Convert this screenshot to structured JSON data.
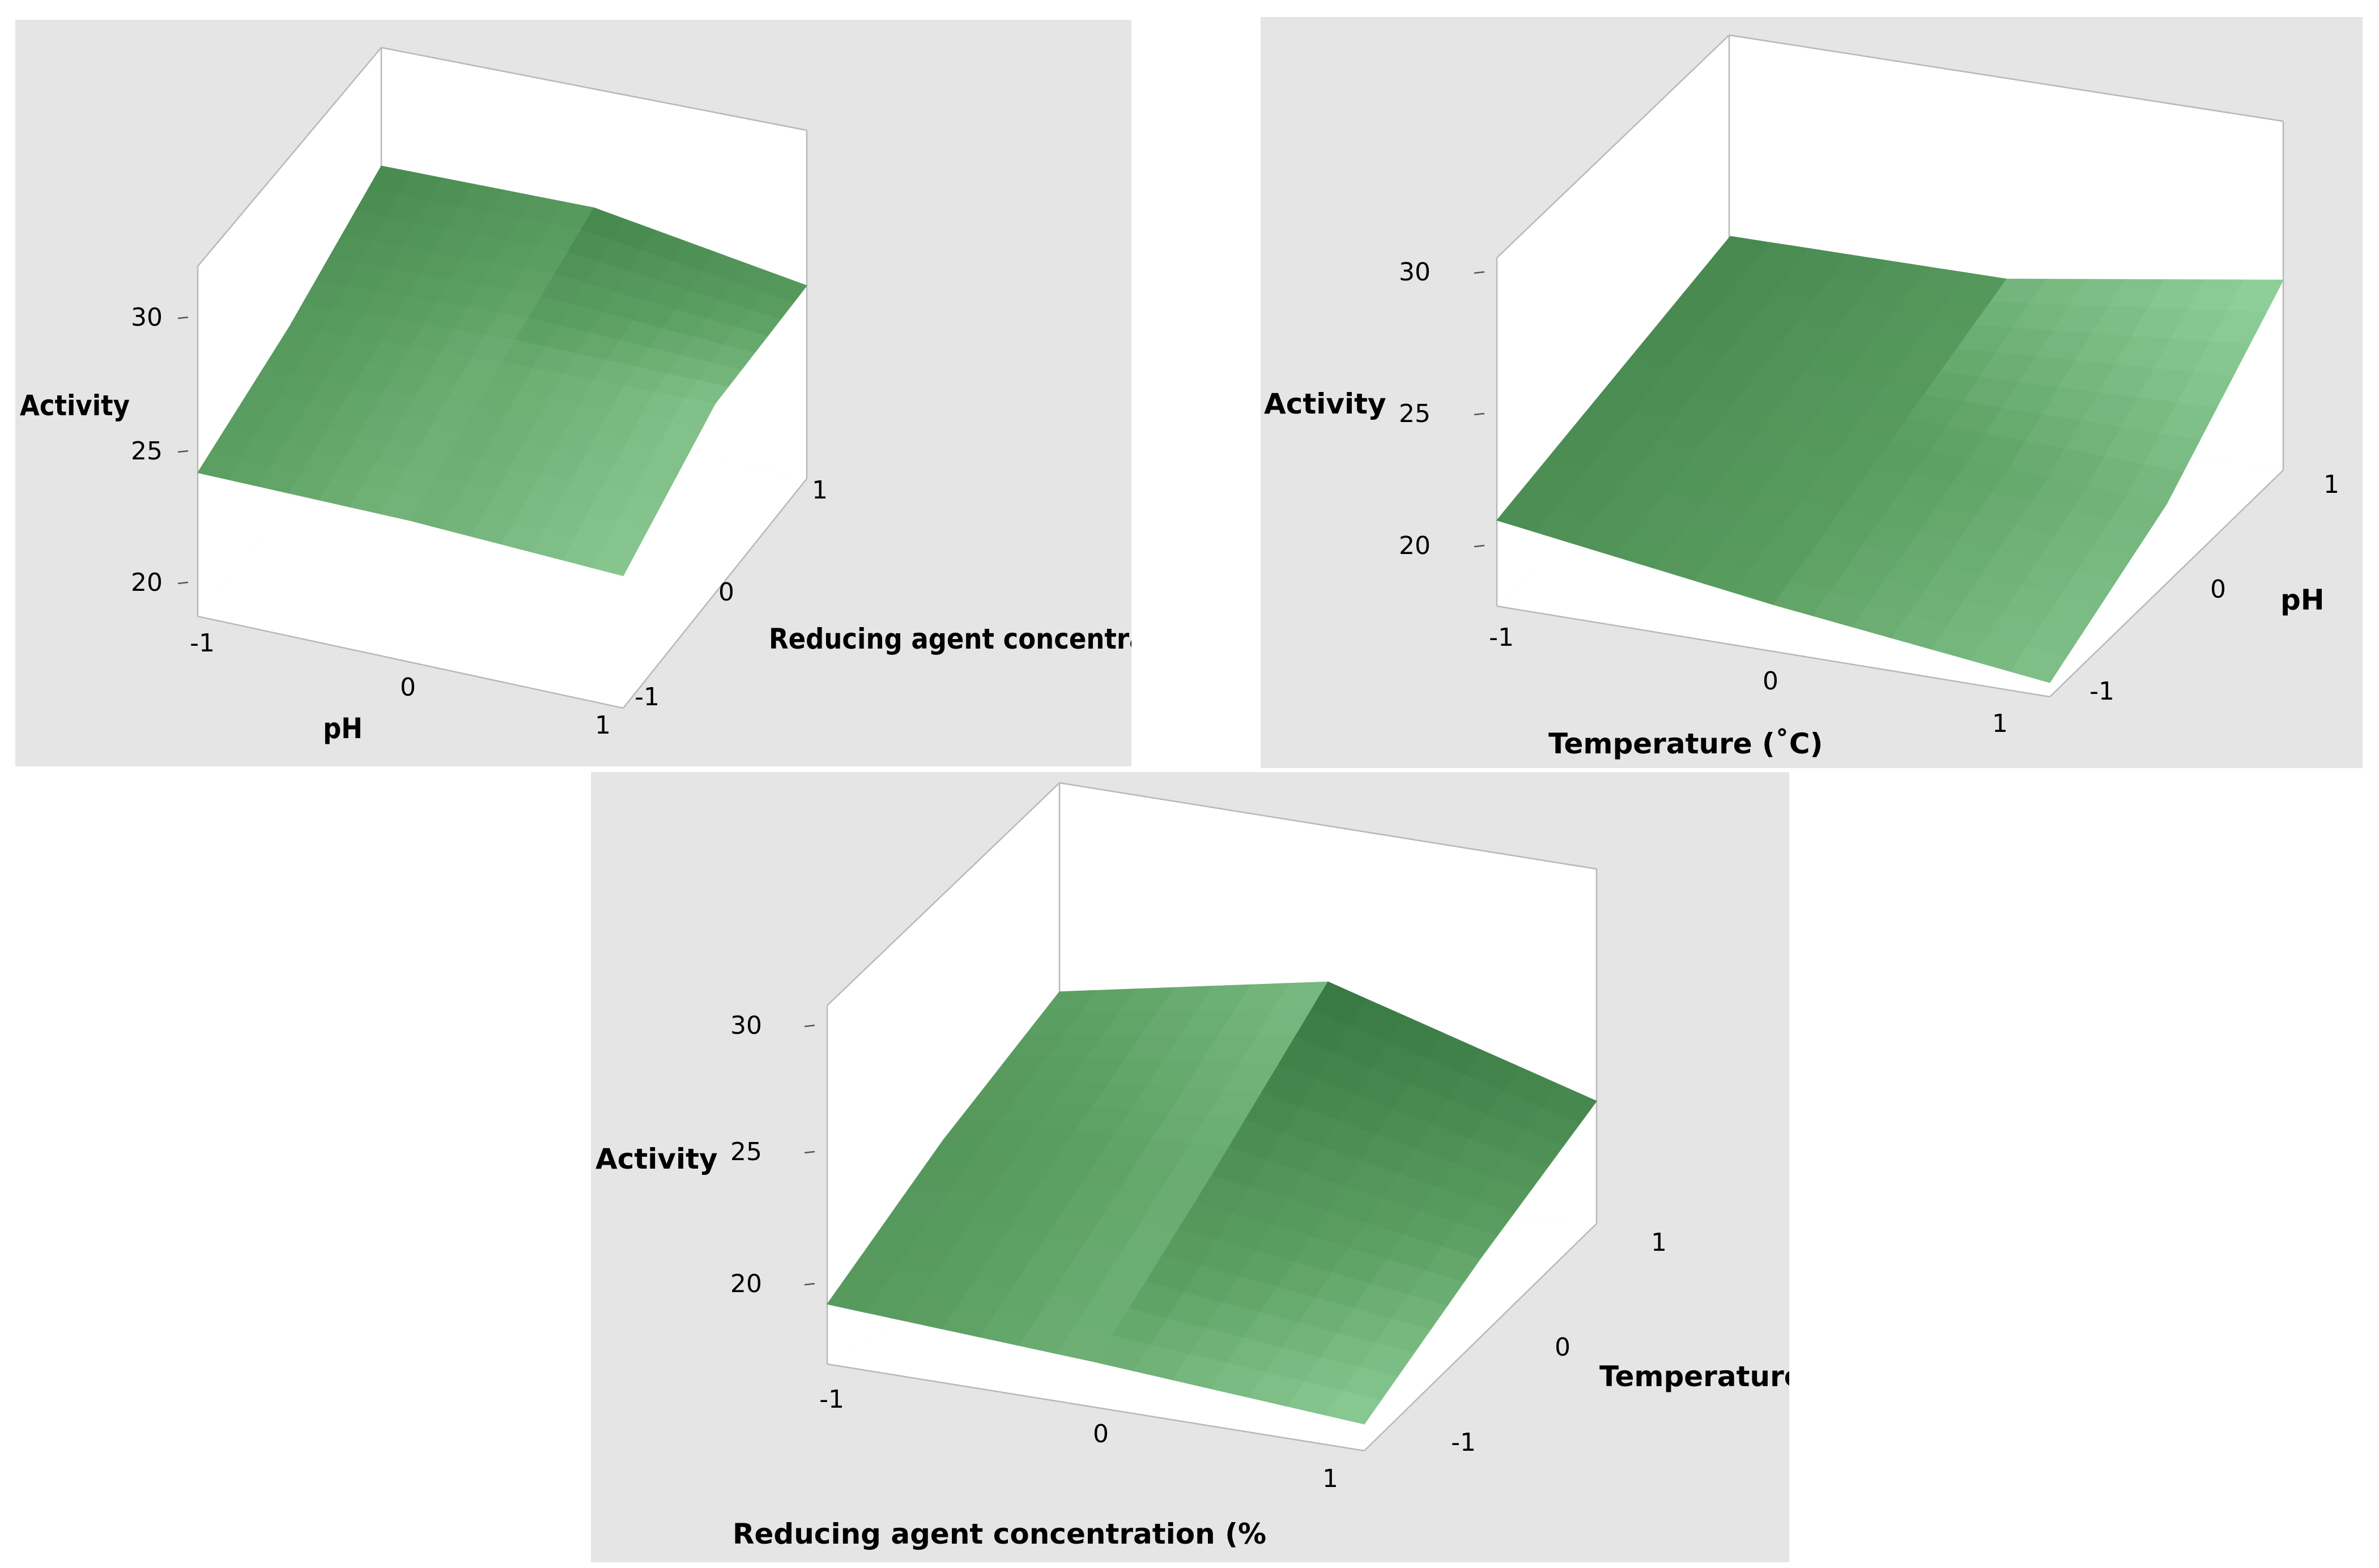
{
  "chart_data": [
    {
      "type": "surface",
      "zlabel": "Activity",
      "xlabel": "pH",
      "ylabel": "Reducing agent concentration",
      "x_ticks": [
        "-1",
        "0",
        "1"
      ],
      "y_ticks": [
        "-1",
        "0",
        "1"
      ],
      "z_ticks": [
        "20",
        "25",
        "30"
      ],
      "x": [
        -1,
        0,
        1
      ],
      "y": [
        -1,
        0,
        1
      ],
      "z": [
        [
          17.9,
          21.0,
          25.5
        ],
        [
          17.7,
          22.0,
          25.9
        ],
        [
          16.8,
          22.4,
          22.8
        ]
      ],
      "colors": {
        "dark": "#2f6e3a",
        "mid": "#5c9f62",
        "light": "#a9e3b2"
      }
    },
    {
      "type": "surface",
      "zlabel": "Activity",
      "xlabel": "Temperature (˚C)",
      "ylabel": "pH",
      "x_ticks": [
        "-1",
        "0",
        "1"
      ],
      "y_ticks": [
        "-1",
        "0",
        "1"
      ],
      "z_ticks": [
        "20",
        "25",
        "30"
      ],
      "x": [
        -1,
        0,
        1
      ],
      "y": [
        -1,
        0,
        1
      ],
      "z": [
        [
          20.2,
          22.4,
          24.6
        ],
        [
          17.2,
          21.0,
          24.8
        ],
        [
          14.7,
          19.7,
          28.2
        ]
      ],
      "colors": {
        "dark": "#2f6e3a",
        "mid": "#5c9f62",
        "light": "#b6f5c4"
      }
    },
    {
      "type": "surface",
      "zlabel": "Activity",
      "xlabel": "Reducing agent concentration (%",
      "ylabel": "Temperature",
      "x_ticks": [
        "-1",
        "0",
        "1"
      ],
      "y_ticks": [
        "-1",
        "0",
        "1"
      ],
      "z_ticks": [
        "20",
        "25",
        "30"
      ],
      "x": [
        -1,
        0,
        1
      ],
      "y": [
        -1,
        0,
        1
      ],
      "z": [
        [
          18.8,
          22.6,
          25.2
        ],
        [
          17.7,
          23.2,
          29.2
        ],
        [
          16.3,
          20.2,
          23.5
        ]
      ],
      "colors": {
        "dark": "#2f6e3a",
        "mid": "#5c9f62",
        "light": "#b6f5c4"
      }
    }
  ]
}
